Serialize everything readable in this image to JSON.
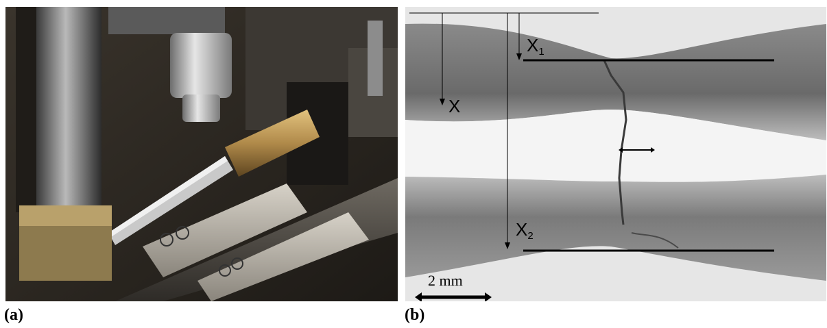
{
  "figure": {
    "panel_a": {
      "caption": "(a)"
    },
    "panel_b": {
      "caption": "(b)",
      "labels": {
        "x": "X",
        "x1_base": "X",
        "x1_sub": "1",
        "x2_base": "X",
        "x2_sub": "2"
      },
      "scale_bar": {
        "label": "2 mm"
      }
    }
  },
  "colors": {
    "annotation": "#000000",
    "metal_brass": "#b08a4a",
    "background_dark": "#2a2520"
  }
}
